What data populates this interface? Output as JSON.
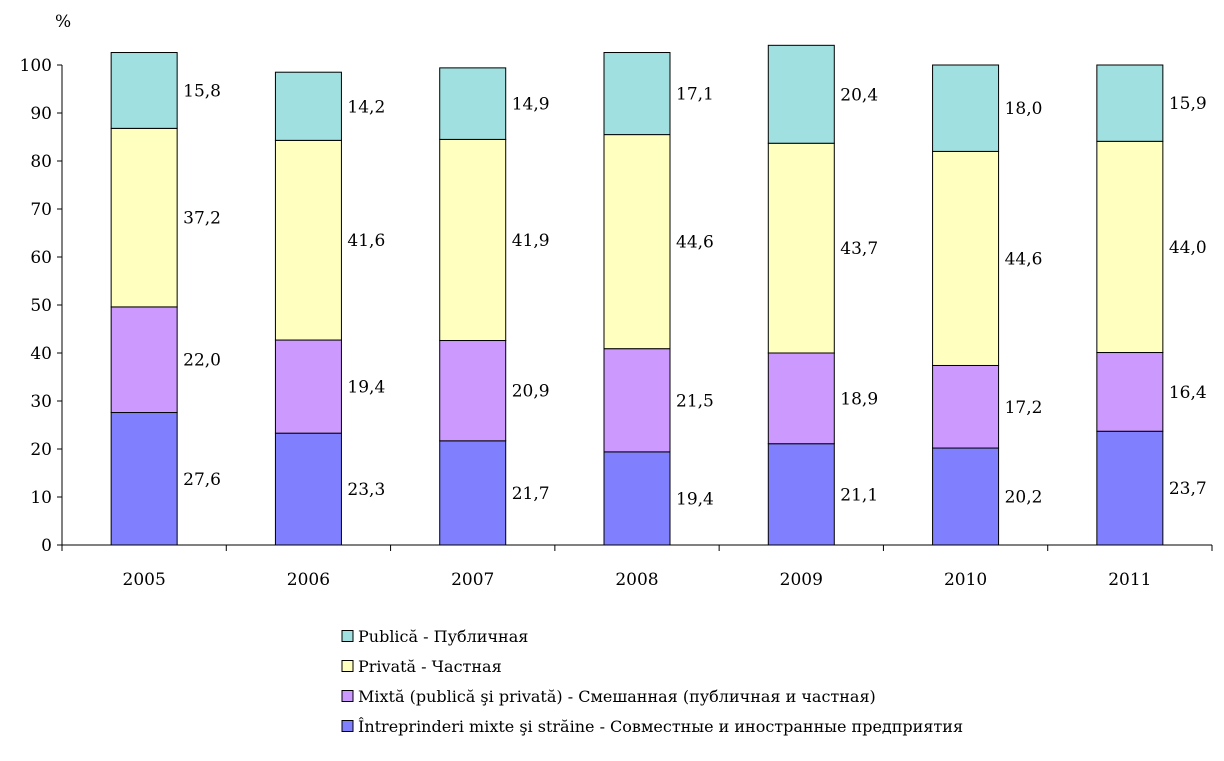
{
  "chart_data": {
    "type": "bar",
    "stacked": true,
    "ylabel": "%",
    "ylim": [
      0,
      100
    ],
    "yticks": [
      0,
      10,
      20,
      30,
      40,
      50,
      60,
      70,
      80,
      90,
      100
    ],
    "categories": [
      "2005",
      "2006",
      "2007",
      "2008",
      "2009",
      "2010",
      "2011"
    ],
    "grid": false,
    "legend_position": "bottom",
    "series": [
      {
        "name": "Întreprinderi mixte şi străine - Совместные и иностранные предприятия",
        "color": "#8080ff",
        "values": [
          "27,6",
          "23,3",
          "21,7",
          "19,4",
          "21,1",
          "20,2",
          "23,7"
        ]
      },
      {
        "name": "Mixtă (publică şi privată) - Смешанная (публичная и частная)",
        "color": "#cc99ff",
        "values": [
          "22,0",
          "19,4",
          "20,9",
          "21,5",
          "18,9",
          "17,2",
          "16,4"
        ]
      },
      {
        "name": "Privată - Частная",
        "color": "#ffffc0",
        "values": [
          "37,2",
          "41,6",
          "41,9",
          "44,6",
          "43,7",
          "44,6",
          "44,0"
        ]
      },
      {
        "name": "Publică - Публичная",
        "color": "#a0e0e0",
        "values": [
          "15,8",
          "14,2",
          "14,9",
          "17,1",
          "20,4",
          "18,0",
          "15,9"
        ]
      }
    ],
    "legend_order": [
      3,
      2,
      1,
      0
    ]
  }
}
